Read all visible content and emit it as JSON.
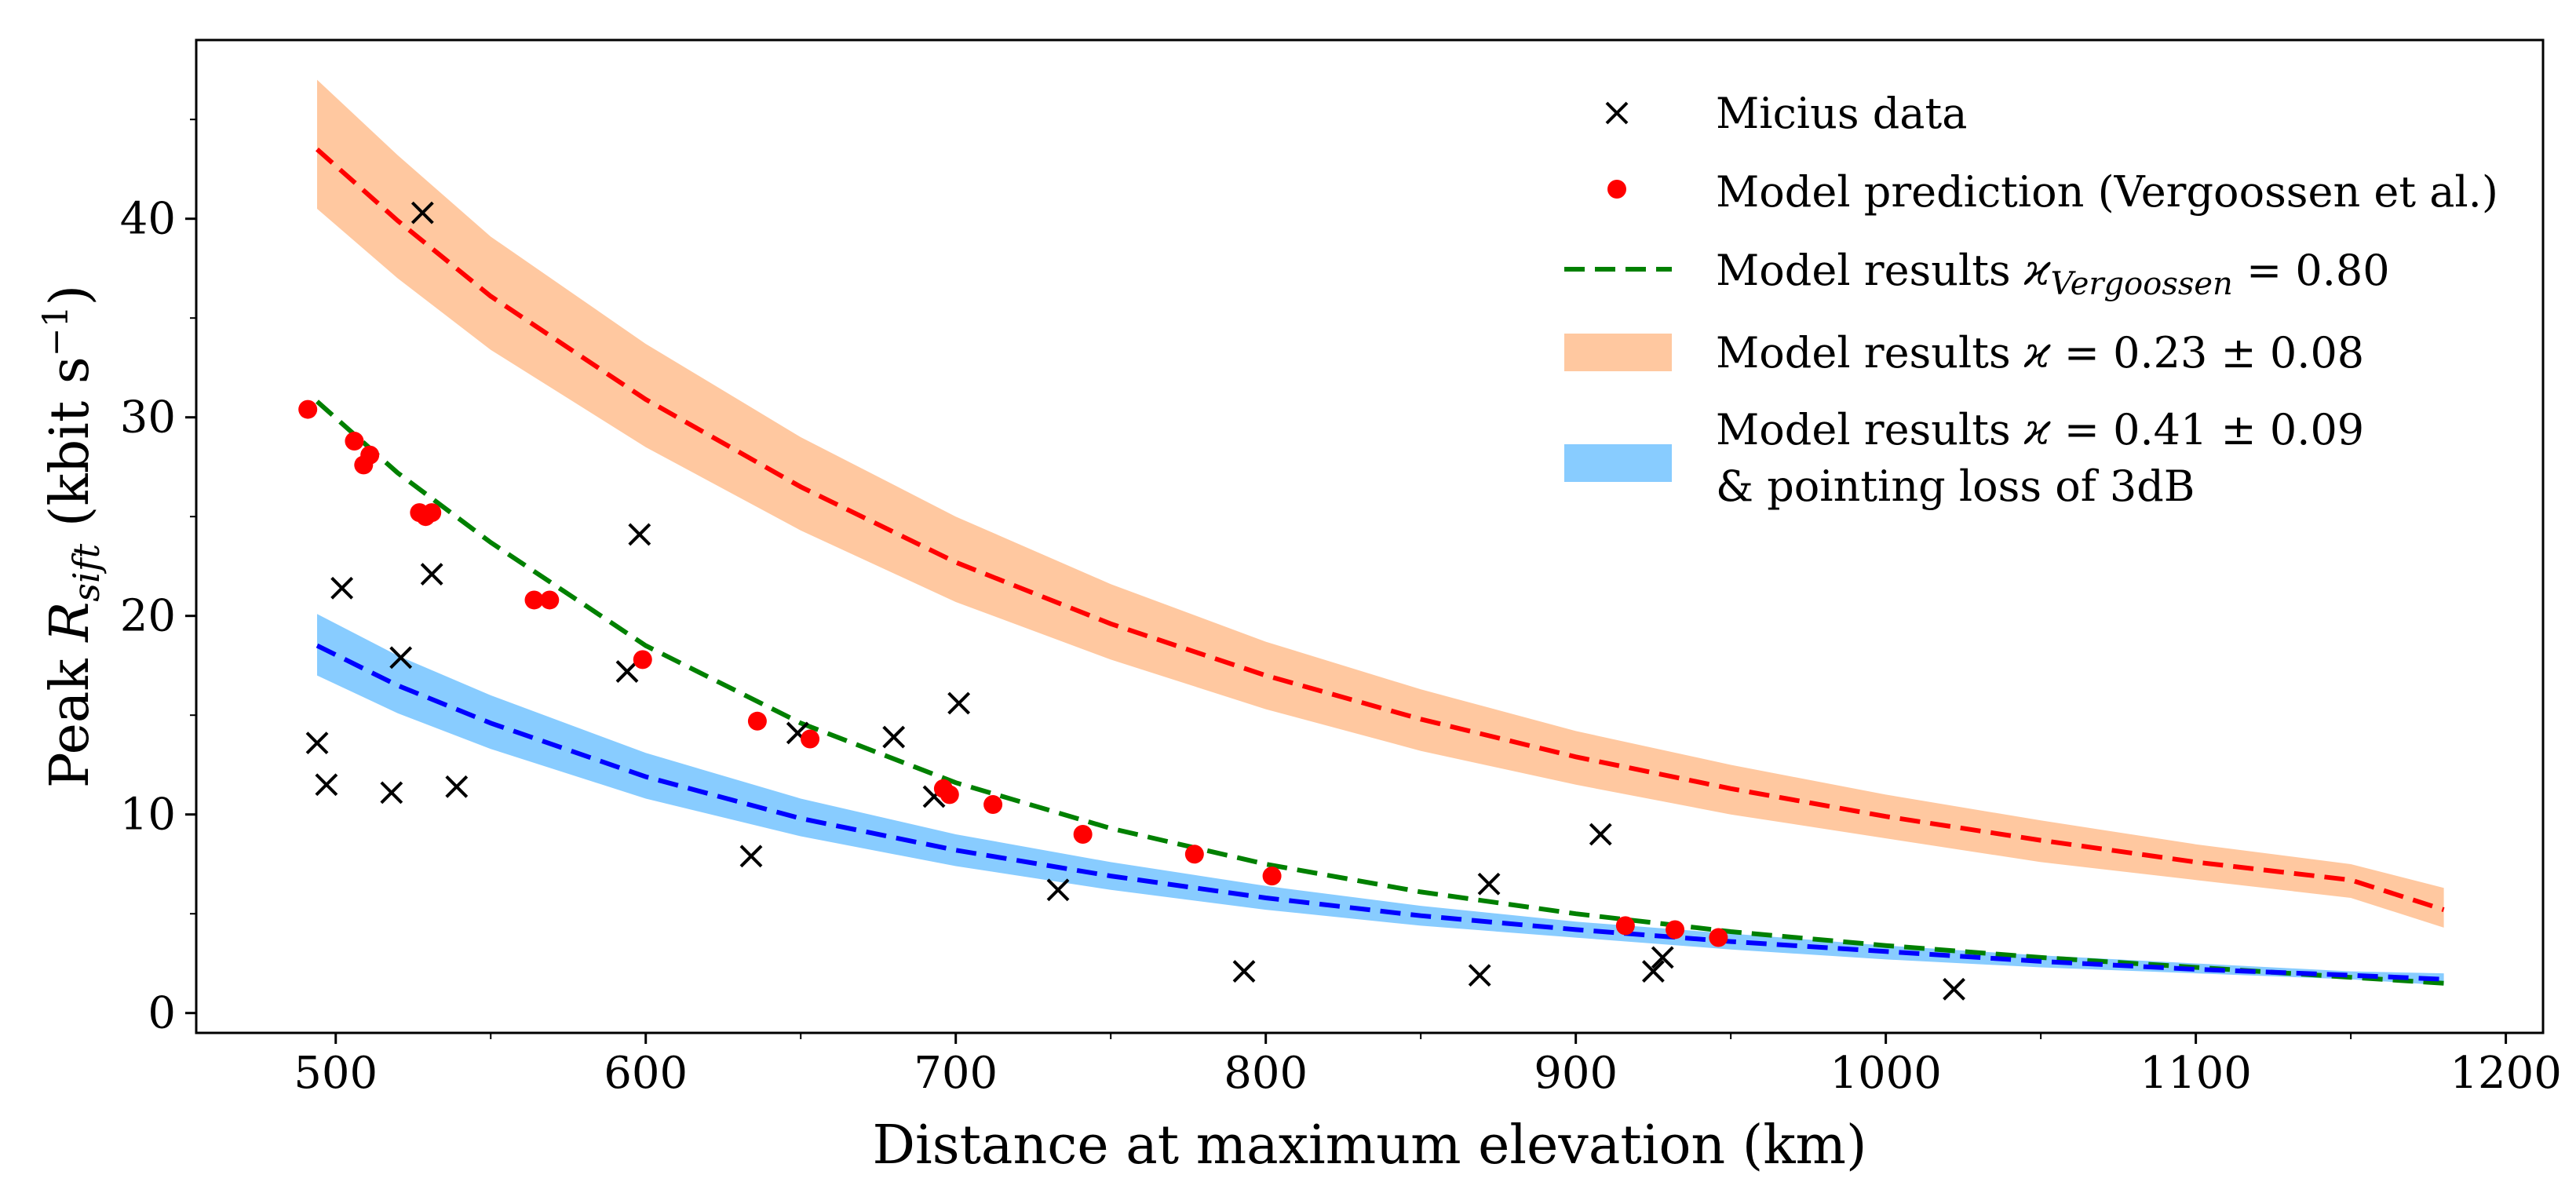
{
  "chart_data": {
    "type": "scatter",
    "xlabel": "Distance at maximum elevation (km)",
    "ylabel": "Peak R_sift (kbit s^-1)",
    "ylabel_parts": {
      "prefix": "Peak ",
      "symbol": "R",
      "subscript": "sift",
      "units": " (kbit s",
      "exponent": "−1",
      "close": ")"
    },
    "xlim": [
      455,
      1212
    ],
    "ylim": [
      -1.0,
      49.0
    ],
    "xticks": [
      500,
      600,
      700,
      800,
      900,
      1000,
      1100,
      1200
    ],
    "yticks": [
      0,
      10,
      20,
      30,
      40
    ],
    "grid": false,
    "legend_position": "top-right",
    "series": [
      {
        "name": "Micius data",
        "kind": "scatter",
        "marker": "x",
        "color": "#000000",
        "points": [
          [
            494,
            13.6
          ],
          [
            497,
            11.5
          ],
          [
            502,
            21.4
          ],
          [
            518,
            11.1
          ],
          [
            521,
            17.9
          ],
          [
            528,
            40.3
          ],
          [
            531,
            22.1
          ],
          [
            539,
            11.4
          ],
          [
            594,
            17.2
          ],
          [
            598,
            24.1
          ],
          [
            634,
            7.9
          ],
          [
            649,
            14.1
          ],
          [
            680,
            13.9
          ],
          [
            693,
            10.9
          ],
          [
            701,
            15.6
          ],
          [
            733,
            6.2
          ],
          [
            793,
            2.1
          ],
          [
            869,
            1.9
          ],
          [
            872,
            6.5
          ],
          [
            908,
            9.0
          ],
          [
            925,
            2.1
          ],
          [
            928,
            2.8
          ],
          [
            1022,
            1.2
          ]
        ]
      },
      {
        "name": "Model prediction (Vergoossen et al.)",
        "kind": "scatter",
        "marker": "o",
        "color": "#ff0000",
        "points": [
          [
            491,
            30.4
          ],
          [
            506,
            28.8
          ],
          [
            509,
            27.6
          ],
          [
            511,
            28.1
          ],
          [
            527,
            25.2
          ],
          [
            529,
            25.0
          ],
          [
            531,
            25.2
          ],
          [
            564,
            20.8
          ],
          [
            569,
            20.8
          ],
          [
            599,
            17.8
          ],
          [
            636,
            14.7
          ],
          [
            653,
            13.8
          ],
          [
            696,
            11.3
          ],
          [
            698,
            11.0
          ],
          [
            712,
            10.5
          ],
          [
            741,
            9.0
          ],
          [
            777,
            8.0
          ],
          [
            802,
            6.9
          ],
          [
            916,
            4.4
          ],
          [
            932,
            4.2
          ],
          [
            946,
            3.8
          ]
        ]
      },
      {
        "name": "Model results ϰ_Vergoossen = 0.80",
        "name_parts": {
          "prefix": "Model results ",
          "symbol": "ϰ",
          "subscript": "Vergoossen",
          "suffix": " = 0.80"
        },
        "kind": "line",
        "style": "dashed",
        "color": "#008000",
        "x": [
          494,
          520,
          550,
          600,
          650,
          700,
          750,
          800,
          850,
          900,
          950,
          1000,
          1050,
          1100,
          1150,
          1180
        ],
        "y": [
          30.8,
          27.2,
          23.7,
          18.5,
          14.6,
          11.6,
          9.3,
          7.5,
          6.1,
          5.0,
          4.1,
          3.4,
          2.8,
          2.3,
          1.8,
          1.5
        ]
      },
      {
        "name": "Model results ϰ = 0.23 ± 0.08",
        "name_parts": {
          "prefix": "Model results ",
          "symbol": "ϰ",
          "suffix": " = 0.23 ± 0.08"
        },
        "kind": "band",
        "color": "#ffc8a0",
        "line_color": "#ff0000",
        "x": [
          494,
          520,
          550,
          600,
          650,
          700,
          750,
          800,
          850,
          900,
          950,
          1000,
          1050,
          1100,
          1150,
          1180
        ],
        "y": [
          43.5,
          39.9,
          36.1,
          30.9,
          26.5,
          22.7,
          19.6,
          17.0,
          14.8,
          12.9,
          11.3,
          9.9,
          8.7,
          7.6,
          6.7,
          5.2
        ],
        "y_upper": [
          47.0,
          43.2,
          39.1,
          33.7,
          29.0,
          25.0,
          21.6,
          18.7,
          16.3,
          14.2,
          12.5,
          11.0,
          9.7,
          8.5,
          7.5,
          6.3
        ],
        "y_lower": [
          40.5,
          37.0,
          33.4,
          28.5,
          24.3,
          20.7,
          17.8,
          15.3,
          13.2,
          11.5,
          10.0,
          8.8,
          7.6,
          6.7,
          5.8,
          4.3
        ]
      },
      {
        "name": "Model results ϰ = 0.41 ± 0.09",
        "name_line2": "& pointing loss of 3dB",
        "name_parts": {
          "prefix": "Model results ",
          "symbol": "ϰ",
          "suffix": " = 0.41 ± 0.09"
        },
        "kind": "band",
        "color": "#88ccff",
        "line_color": "#0000ff",
        "x": [
          494,
          520,
          550,
          600,
          650,
          700,
          750,
          800,
          850,
          900,
          950,
          1000,
          1050,
          1100,
          1150,
          1180
        ],
        "y": [
          18.5,
          16.5,
          14.6,
          11.9,
          9.8,
          8.2,
          6.9,
          5.8,
          4.9,
          4.2,
          3.6,
          3.1,
          2.6,
          2.2,
          1.9,
          1.7
        ],
        "y_upper": [
          20.1,
          18.0,
          16.0,
          13.1,
          10.8,
          9.0,
          7.6,
          6.4,
          5.4,
          4.6,
          4.0,
          3.4,
          2.9,
          2.5,
          2.1,
          2.0
        ],
        "y_lower": [
          17.0,
          15.1,
          13.3,
          10.8,
          8.9,
          7.4,
          6.2,
          5.2,
          4.4,
          3.8,
          3.2,
          2.7,
          2.3,
          2.0,
          1.7,
          1.4
        ]
      }
    ]
  }
}
